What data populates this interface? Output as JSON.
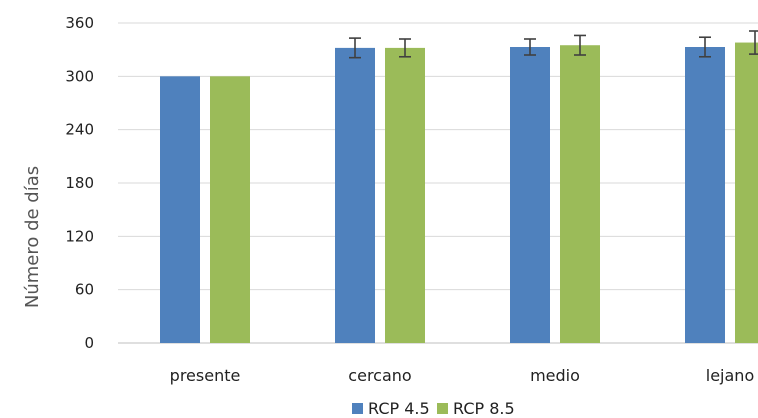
{
  "chart_data": {
    "type": "bar",
    "title": "",
    "xlabel": "",
    "ylabel": "Número de días",
    "ylim": [
      0,
      360
    ],
    "yticks": [
      0,
      60,
      120,
      180,
      240,
      300,
      360
    ],
    "grid": true,
    "legend_position": "bottom",
    "categories": [
      "presente",
      "cercano",
      "medio",
      "lejano"
    ],
    "series": [
      {
        "name": "RCP 4.5",
        "color": "#4f81bd",
        "values": [
          300,
          332,
          333,
          333
        ],
        "error": [
          0,
          11,
          9,
          11
        ]
      },
      {
        "name": "RCP 8.5",
        "color": "#9bbb59",
        "values": [
          300,
          332,
          335,
          338
        ],
        "error": [
          0,
          10,
          11,
          13
        ]
      }
    ]
  }
}
